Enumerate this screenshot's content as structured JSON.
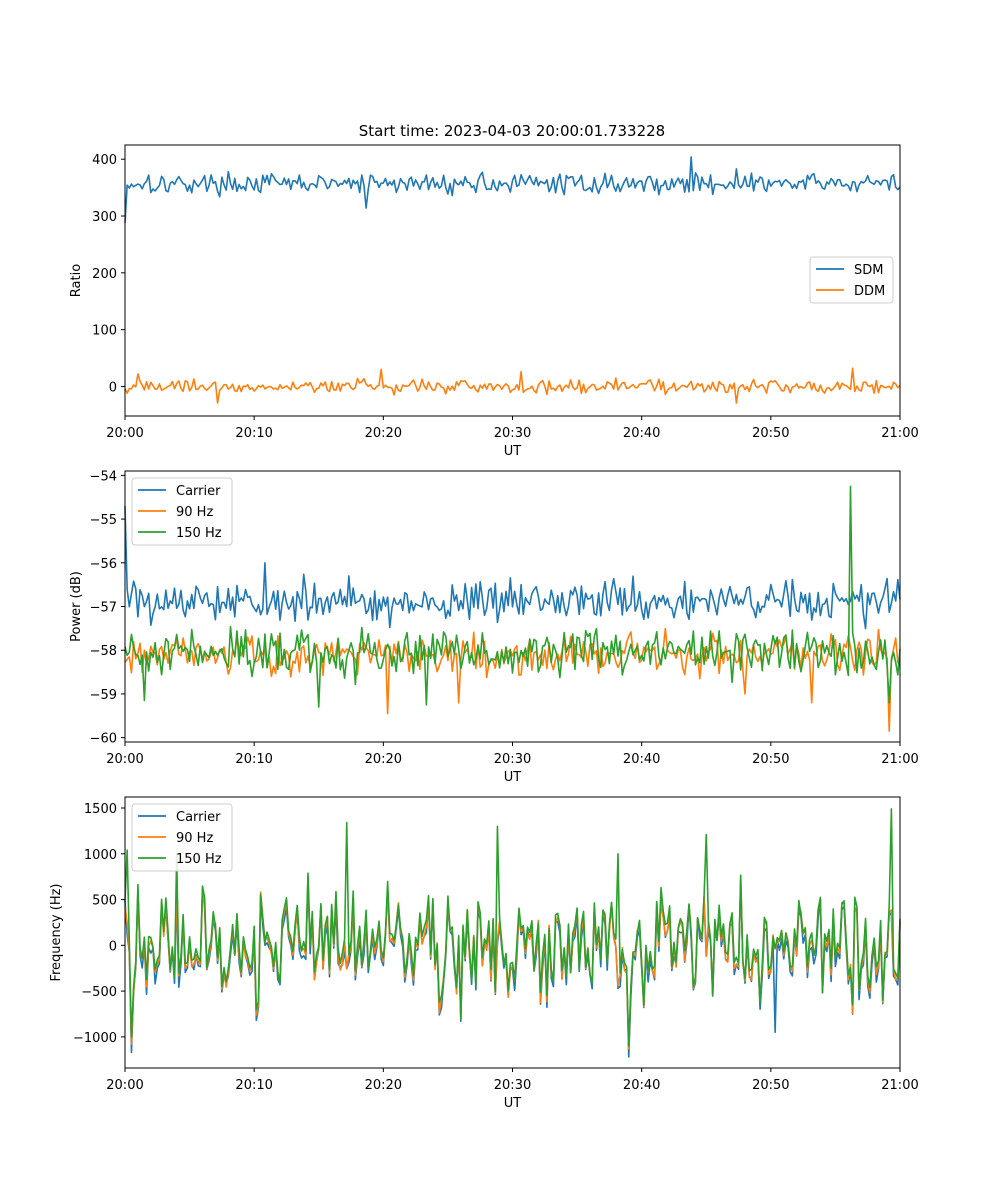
{
  "figure": {
    "title": "Start time: 2023-04-03 20:00:01.733228"
  },
  "chart_data": [
    {
      "type": "line",
      "xlabel": "UT",
      "ylabel": "Ratio",
      "x_range": [
        "20:00",
        "21:00"
      ],
      "x_ticks": [
        "20:00",
        "20:10",
        "20:20",
        "20:30",
        "20:40",
        "20:50",
        "21:00"
      ],
      "ylim": [
        -52,
        425
      ],
      "y_ticks": [
        0,
        100,
        200,
        300,
        400
      ],
      "y_tick_labels": [
        "0",
        "100",
        "200",
        "300",
        "400"
      ],
      "legend_position": "center-right",
      "grid": false,
      "series": [
        {
          "name": "SDM",
          "color": "#1f77b4",
          "mean": 357,
          "noise": 12,
          "spikes": [
            [
              0.0,
              288
            ],
            [
              0.03,
              372
            ],
            [
              0.31,
              314
            ],
            [
              0.46,
              377
            ],
            [
              0.73,
              404
            ],
            [
              0.79,
              383
            ]
          ]
        },
        {
          "name": "DDM",
          "color": "#ff7f0e",
          "mean": 0,
          "noise": 8,
          "spikes": [
            [
              0.018,
              22
            ],
            [
              0.12,
              -29
            ],
            [
              0.33,
              30
            ],
            [
              0.51,
              26
            ],
            [
              0.79,
              -29
            ],
            [
              0.94,
              32
            ]
          ]
        }
      ]
    },
    {
      "type": "line",
      "xlabel": "UT",
      "ylabel": "Power (dB)",
      "x_range": [
        "20:00",
        "21:00"
      ],
      "x_ticks": [
        "20:00",
        "20:10",
        "20:20",
        "20:30",
        "20:40",
        "20:50",
        "21:00"
      ],
      "ylim": [
        -60.1,
        -53.9
      ],
      "y_ticks": [
        -60,
        -59,
        -58,
        -57,
        -56,
        -55,
        -54
      ],
      "y_tick_labels": [
        "−60",
        "−59",
        "−58",
        "−57",
        "−56",
        "−55",
        "−54"
      ],
      "legend_position": "top-left",
      "grid": false,
      "series": [
        {
          "name": "Carrier",
          "color": "#1f77b4",
          "mean": -56.9,
          "noise": 0.32,
          "spikes": [
            [
              0.0,
              -54.7
            ],
            [
              0.18,
              -56.0
            ],
            [
              0.29,
              -56.3
            ],
            [
              0.51,
              -56.5
            ],
            [
              0.95,
              -56.5
            ]
          ]
        },
        {
          "name": "90 Hz",
          "color": "#ff7f0e",
          "mean": -58.1,
          "noise": 0.33,
          "spikes": [
            [
              0.34,
              -59.45
            ],
            [
              0.43,
              -59.2
            ],
            [
              0.8,
              -59.0
            ],
            [
              0.885,
              -59.2
            ],
            [
              0.985,
              -59.85
            ]
          ]
        },
        {
          "name": "150 Hz",
          "color": "#2ca02c",
          "mean": -58.05,
          "noise": 0.38,
          "spikes": [
            [
              0.026,
              -59.15
            ],
            [
              0.25,
              -59.3
            ],
            [
              0.39,
              -59.25
            ],
            [
              0.935,
              -54.25
            ],
            [
              0.985,
              -59.2
            ]
          ]
        }
      ]
    },
    {
      "type": "line",
      "xlabel": "UT",
      "ylabel": "Frequency (Hz)",
      "x_range": [
        "20:00",
        "21:00"
      ],
      "x_ticks": [
        "20:00",
        "20:10",
        "20:20",
        "20:30",
        "20:40",
        "20:50",
        "21:00"
      ],
      "ylim": [
        -1340,
        1620
      ],
      "y_ticks": [
        -1000,
        -500,
        0,
        500,
        1000,
        1500
      ],
      "y_tick_labels": [
        "−1000",
        "−500",
        "0",
        "500",
        "1000",
        "1500"
      ],
      "legend_position": "top-left",
      "grid": false,
      "series": [
        {
          "name": "Carrier",
          "color": "#1f77b4",
          "mean": -60,
          "noise": 380,
          "spikes": [
            [
              0.008,
              -1170
            ],
            [
              0.65,
              -1220
            ],
            [
              0.84,
              -950
            ]
          ]
        },
        {
          "name": "90 Hz",
          "color": "#ff7f0e",
          "mean": -20,
          "noise": 380,
          "spikes": [
            [
              0.008,
              -1080
            ],
            [
              0.65,
              -1130
            ]
          ]
        },
        {
          "name": "150 Hz",
          "color": "#2ca02c",
          "mean": 20,
          "noise": 380,
          "spikes": [
            [
              0.002,
              1040
            ],
            [
              0.066,
              1000
            ],
            [
              0.287,
              1340
            ],
            [
              0.48,
              1300
            ],
            [
              0.637,
              1000
            ],
            [
              0.75,
              1210
            ],
            [
              0.99,
              1490
            ],
            [
              0.008,
              -1000
            ],
            [
              0.65,
              -1100
            ]
          ]
        }
      ]
    }
  ]
}
